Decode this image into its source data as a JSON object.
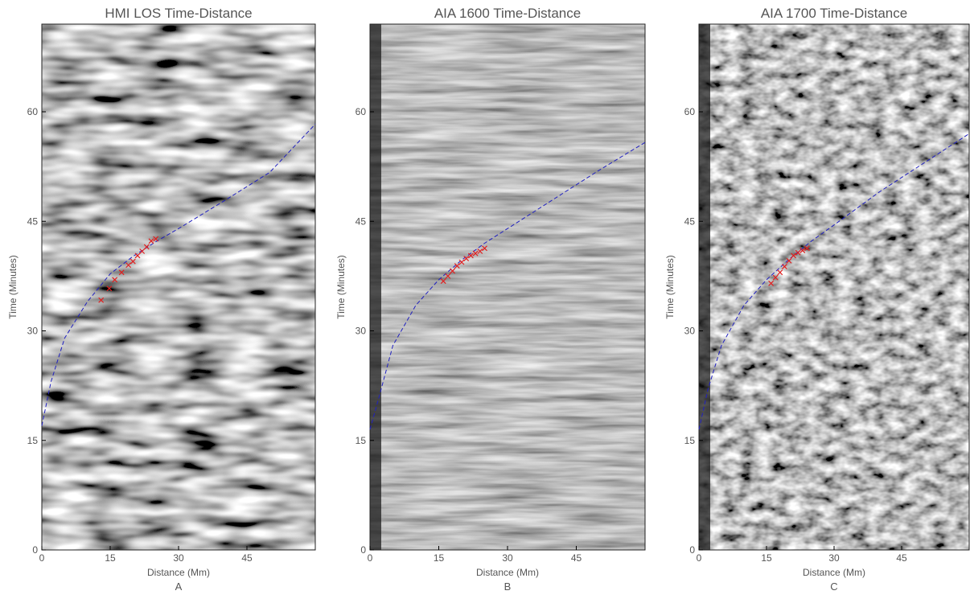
{
  "chart_data": [
    {
      "type": "line",
      "title": "HMI LOS Time-Distance",
      "xlabel": "Distance (Mm)",
      "ylabel": "Time (Minutes)",
      "panel": "A",
      "xlim": [
        0,
        60
      ],
      "ylim": [
        0,
        72
      ],
      "xticks": [
        0,
        15,
        30,
        45
      ],
      "yticks": [
        0,
        15,
        30,
        45,
        60
      ],
      "series": [
        {
          "style": "dashed",
          "color": "#2020c0",
          "x": [
            0,
            2,
            5,
            10,
            15,
            20,
            25,
            30,
            40,
            50,
            60
          ],
          "values": [
            17,
            23,
            29,
            34,
            37.8,
            40.2,
            42.2,
            44,
            47.8,
            51.7,
            58.3
          ]
        },
        {
          "marker": "x",
          "color": "#e02020",
          "x": [
            13,
            14.8,
            16,
            17.5,
            19,
            20,
            21,
            22,
            23,
            24,
            25
          ],
          "values": [
            34.2,
            35.8,
            37,
            38,
            39,
            39.5,
            40.3,
            40.9,
            41.5,
            42.3,
            42.6
          ]
        }
      ]
    },
    {
      "type": "line",
      "title": "AIA 1600 Time-Distance",
      "xlabel": "Distance (Mm)",
      "ylabel": "Time (Minutes)",
      "panel": "B",
      "xlim": [
        0,
        60
      ],
      "ylim": [
        0,
        72
      ],
      "xticks": [
        0,
        15,
        30,
        45
      ],
      "yticks": [
        0,
        15,
        30,
        45,
        60
      ],
      "series": [
        {
          "style": "dashed",
          "color": "#2020c0",
          "x": [
            0,
            2,
            5,
            10,
            15,
            20,
            25,
            30,
            40,
            50,
            60
          ],
          "values": [
            16.5,
            21,
            28,
            33.5,
            37,
            39.7,
            42,
            44,
            48,
            52,
            55.8
          ]
        },
        {
          "marker": "x",
          "color": "#e02020",
          "x": [
            16,
            17,
            18,
            19,
            20,
            21,
            22,
            23,
            24,
            25
          ],
          "values": [
            36.8,
            37.5,
            38.2,
            38.9,
            39.4,
            39.9,
            40.3,
            40.6,
            40.9,
            41.3
          ]
        }
      ]
    },
    {
      "type": "line",
      "title": "AIA 1700 Time-Distance",
      "xlabel": "Distance (Mm)",
      "ylabel": "Time (Minutes)",
      "panel": "C",
      "xlim": [
        0,
        60
      ],
      "ylim": [
        0,
        72
      ],
      "xticks": [
        0,
        15,
        30,
        45
      ],
      "yticks": [
        0,
        15,
        30,
        45,
        60
      ],
      "series": [
        {
          "style": "dashed",
          "color": "#2020c0",
          "x": [
            0,
            2,
            5,
            10,
            15,
            20,
            25,
            30,
            40,
            50,
            60
          ],
          "values": [
            16.5,
            22,
            28,
            33.5,
            37,
            39.8,
            42.3,
            44.5,
            49,
            53,
            57
          ]
        },
        {
          "marker": "x",
          "color": "#e02020",
          "x": [
            16,
            17,
            18,
            19,
            20,
            21,
            22,
            23,
            24
          ],
          "values": [
            36.5,
            37.3,
            38,
            38.8,
            39.6,
            40.3,
            40.7,
            41,
            41.3
          ]
        }
      ]
    }
  ]
}
